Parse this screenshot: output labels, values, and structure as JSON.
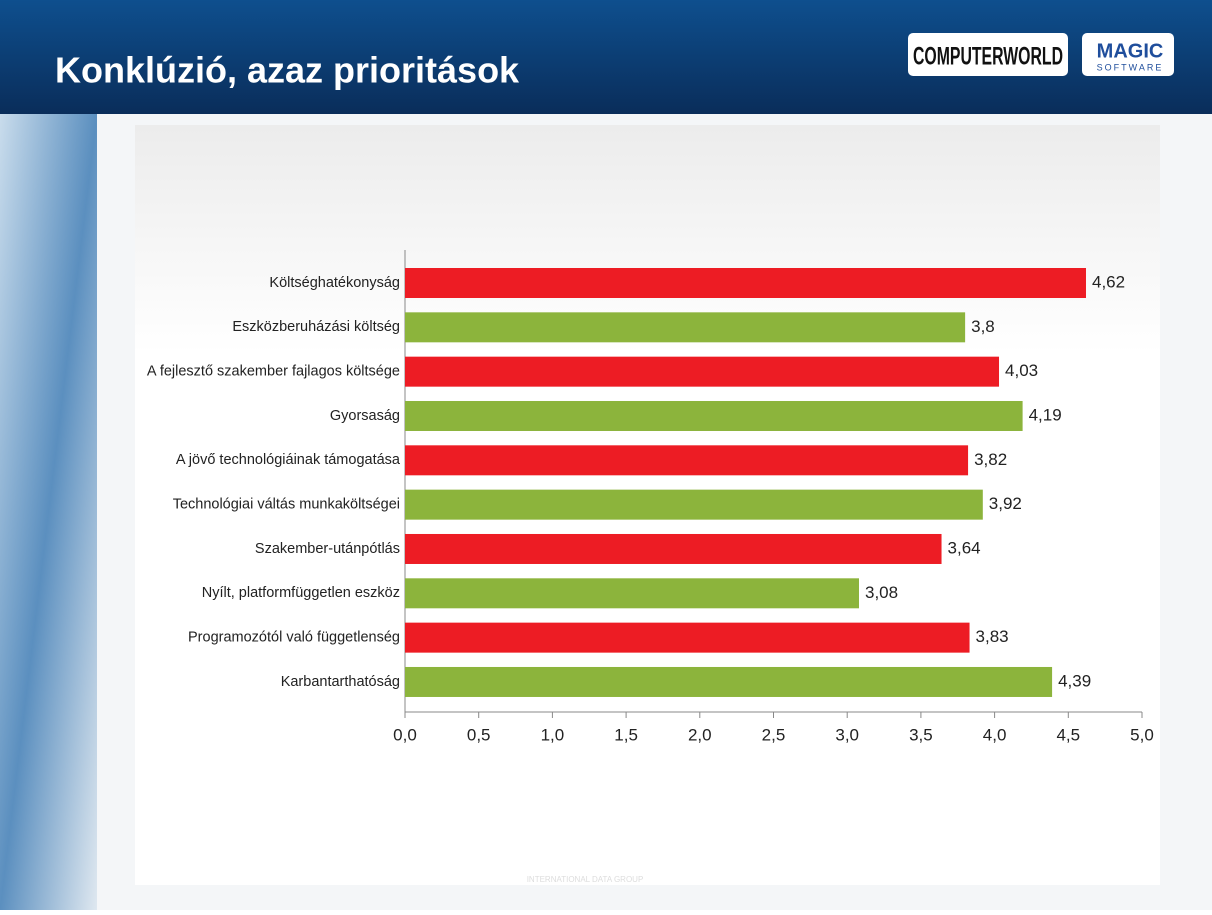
{
  "header": {
    "title": "Konklúzió, azaz prioritások",
    "logos": [
      "COMPUTERWORLD",
      "MAGIC",
      "SOFTWARE"
    ]
  },
  "footer": {
    "text": "INTERNATIONAL DATA GROUP"
  },
  "chart_data": {
    "type": "bar",
    "orientation": "horizontal",
    "categories": [
      "Költséghatékonyság",
      "Eszközberuházási költség",
      "A fejlesztő szakember fajlagos költsége",
      "Gyorsaság",
      "A jövő technológiáinak támogatása",
      "Technológiai váltás munkaköltségei",
      "Szakember-utánpótlás",
      "Nyílt, platformfüggetlen eszköz",
      "Programozótól való függetlenség",
      "Karbantarthatóság"
    ],
    "values": [
      4.62,
      3.8,
      4.03,
      4.19,
      3.82,
      3.92,
      3.64,
      3.08,
      3.83,
      4.39
    ],
    "value_labels": [
      "4,62",
      "3,8",
      "4,03",
      "4,19",
      "3,82",
      "3,92",
      "3,64",
      "3,08",
      "3,83",
      "4,39"
    ],
    "colors": [
      "#ed1c24",
      "#8cb43c",
      "#ed1c24",
      "#8cb43c",
      "#ed1c24",
      "#8cb43c",
      "#ed1c24",
      "#8cb43c",
      "#ed1c24",
      "#8cb43c"
    ],
    "xlim": [
      0,
      5
    ],
    "xticks": [
      {
        "value": 0,
        "label": "0,0"
      },
      {
        "value": 0.5,
        "label": "0,5"
      },
      {
        "value": 1,
        "label": "1,0"
      },
      {
        "value": 1.5,
        "label": "1,5"
      },
      {
        "value": 2,
        "label": "2,0"
      },
      {
        "value": 2.5,
        "label": "2,5"
      },
      {
        "value": 3,
        "label": "3,0"
      },
      {
        "value": 3.5,
        "label": "3,5"
      },
      {
        "value": 4,
        "label": "4,0"
      },
      {
        "value": 4.5,
        "label": "4,5"
      },
      {
        "value": 5,
        "label": "5,0"
      }
    ],
    "grid": false
  }
}
